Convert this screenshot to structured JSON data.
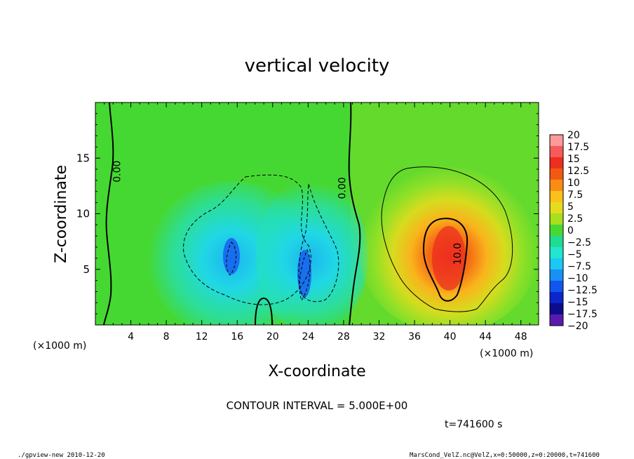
{
  "chart_data": {
    "type": "heatmap",
    "title": "vertical velocity",
    "xlabel": "X-coordinate",
    "ylabel": "Z-coordinate",
    "x_unit": "(×1000 m)",
    "z_unit": "(×1000 m)",
    "x_ticks": [
      4,
      8,
      12,
      16,
      20,
      24,
      28,
      32,
      36,
      40,
      44,
      48
    ],
    "z_ticks": [
      5,
      10,
      15
    ],
    "xlim": [
      0,
      50
    ],
    "zlim": [
      0,
      20
    ],
    "contour_labels": [
      {
        "text": "0.00",
        "x": 2.8,
        "z": 13.8
      },
      {
        "text": "0.00",
        "x": 28.2,
        "z": 12.3
      },
      {
        "text": "10.0",
        "x": 41.2,
        "z": 6.4
      }
    ],
    "colorbar": {
      "labels": [
        "20",
        "17.5",
        "15",
        "12.5",
        "10",
        "7.5",
        "5",
        "2.5",
        "0",
        "−2.5",
        "−5",
        "−7.5",
        "−10",
        "−12.5",
        "−15",
        "−17.5",
        "−20"
      ],
      "colors": [
        "#ff9a9a",
        "#f75a5a",
        "#ec2f20",
        "#f25a12",
        "#fa8c14",
        "#fac01c",
        "#e6dc1e",
        "#a8e01e",
        "#48d832",
        "#20dc90",
        "#20e6d2",
        "#1cc8f4",
        "#1890f4",
        "#1256ee",
        "#0c26cc",
        "#0c0c8c",
        "#5a1ab0"
      ]
    },
    "contour_interval": "CONTOUR INTERVAL = 5.000E+00",
    "time_label": "t=741600 s"
  },
  "footer": {
    "left": "./gpview-new  2010-12-20",
    "right": "MarsCond_VelZ.nc@VelZ,x=0:50000,z=0:20000,t=741600"
  }
}
